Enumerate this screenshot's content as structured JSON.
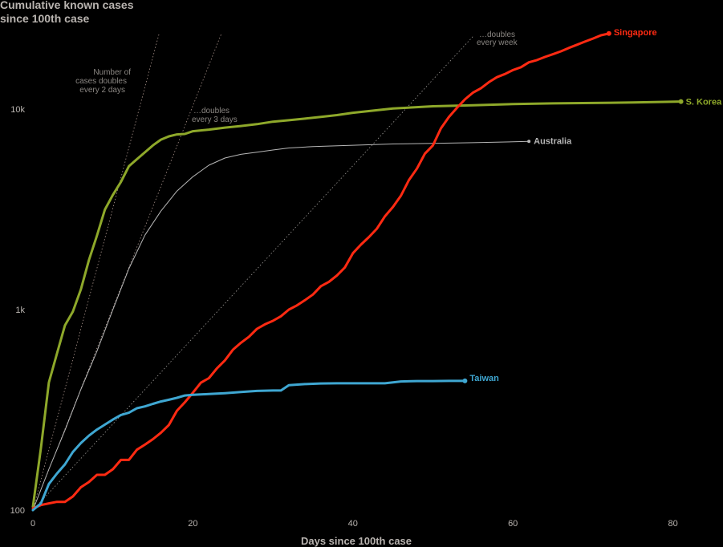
{
  "chart_data": {
    "type": "line",
    "title_lines": [
      "Cumulative known cases",
      "since 100th case"
    ],
    "xlabel": "Days since 100th case",
    "ylabel": "",
    "y_scale": "log",
    "xlim": [
      0,
      86
    ],
    "ylim": [
      100,
      30000
    ],
    "x_ticks": [
      0,
      20,
      40,
      60,
      80
    ],
    "x_tick_labels": [
      "0",
      "20",
      "40",
      "60",
      "80"
    ],
    "y_ticks": [
      100,
      1000,
      10000
    ],
    "y_tick_labels": [
      "100",
      "1k",
      "10k"
    ],
    "grid": false,
    "legend": "labels at line ends",
    "reference_lines": [
      {
        "id": "double-2",
        "doubling_days": 2,
        "x": [
          0,
          15.8
        ],
        "y": [
          100,
          24000
        ],
        "label_lines": [
          "Number of",
          "cases doubles",
          "every 2 days"
        ],
        "color": "#a8928a"
      },
      {
        "id": "double-3",
        "doubling_days": 3,
        "x": [
          0,
          23.6
        ],
        "y": [
          100,
          24000
        ],
        "label_lines": [
          "…doubles",
          "every 3 days"
        ],
        "color": "#a8928a"
      },
      {
        "id": "double-7",
        "doubling_days": 7,
        "x": [
          0,
          55
        ],
        "y": [
          100,
          23000
        ],
        "label_lines": [
          "…doubles",
          "every week"
        ],
        "color": "#9a9794"
      }
    ],
    "series": [
      {
        "name": "S. Korea",
        "color": "#8ea82a",
        "width": 3,
        "x": [
          0,
          1,
          2,
          3,
          4,
          5,
          6,
          7,
          8,
          9,
          10,
          11,
          12,
          13,
          14,
          15,
          16,
          17,
          18,
          19,
          20,
          22,
          24,
          26,
          28,
          30,
          32,
          34,
          36,
          38,
          40,
          45,
          50,
          55,
          60,
          65,
          70,
          75,
          81
        ],
        "y": [
          104,
          204,
          433,
          602,
          833,
          977,
          1261,
          1766,
          2337,
          3150,
          3736,
          4335,
          5186,
          5621,
          6088,
          6593,
          7041,
          7313,
          7478,
          7513,
          7755,
          7897,
          8086,
          8236,
          8413,
          8652,
          8799,
          8961,
          9137,
          9332,
          9583,
          10062,
          10331,
          10450,
          10591,
          10674,
          10728,
          10780,
          10900
        ]
      },
      {
        "name": "Australia",
        "color": "#b7b7b7",
        "width": 1,
        "x": [
          0,
          2,
          4,
          6,
          8,
          10,
          12,
          14,
          16,
          18,
          20,
          22,
          24,
          26,
          28,
          30,
          32,
          35,
          40,
          45,
          50,
          55,
          62
        ],
        "y": [
          100,
          160,
          250,
          400,
          620,
          1000,
          1600,
          2350,
          3100,
          3900,
          4600,
          5250,
          5700,
          5950,
          6100,
          6250,
          6400,
          6500,
          6600,
          6700,
          6750,
          6800,
          6900
        ]
      },
      {
        "name": "Singapore",
        "color": "#ff2a12",
        "width": 3,
        "x": [
          0,
          1,
          2,
          3,
          4,
          5,
          6,
          7,
          8,
          9,
          10,
          11,
          12,
          13,
          14,
          15,
          16,
          17,
          18,
          19,
          20,
          21,
          22,
          23,
          24,
          25,
          26,
          27,
          28,
          29,
          30,
          31,
          32,
          33,
          34,
          35,
          36,
          37,
          38,
          39,
          40,
          41,
          42,
          43,
          44,
          45,
          46,
          47,
          48,
          49,
          50,
          51,
          52,
          53,
          54,
          55,
          56,
          57,
          58,
          59,
          60,
          61,
          62,
          63,
          64,
          65,
          66,
          67,
          68,
          69,
          70,
          71,
          72
        ],
        "y": [
          102,
          106,
          108,
          110,
          110,
          117,
          130,
          138,
          150,
          150,
          160,
          178,
          178,
          200,
          212,
          226,
          243,
          266,
          313,
          345,
          385,
          432,
          455,
          509,
          558,
          631,
          683,
          732,
          802,
          844,
          879,
          926,
          1000,
          1049,
          1114,
          1189,
          1309,
          1375,
          1481,
          1623,
          1910,
          2108,
          2299,
          2532,
          2918,
          3252,
          3699,
          4427,
          5050,
          5992,
          6588,
          8014,
          9125,
          10141,
          11178,
          12075,
          12693,
          13624,
          14423,
          14951,
          15641,
          16169,
          17101,
          17548,
          18205,
          18778,
          19410,
          20198,
          20939,
          21707,
          22460,
          23336,
          23822
        ]
      },
      {
        "name": "Taiwan",
        "color": "#3fa7d2",
        "width": 3,
        "x": [
          0,
          1,
          2,
          3,
          4,
          5,
          6,
          7,
          8,
          9,
          10,
          11,
          12,
          13,
          14,
          15,
          16,
          17,
          18,
          19,
          20,
          22,
          24,
          26,
          28,
          30,
          31,
          32,
          34,
          36,
          38,
          40,
          42,
          44,
          46,
          48,
          50,
          52,
          54
        ],
        "y": [
          100,
          108,
          135,
          152,
          169,
          195,
          216,
          235,
          252,
          267,
          283,
          298,
          306,
          322,
          329,
          339,
          348,
          355,
          363,
          373,
          376,
          379,
          383,
          388,
          393,
          395,
          395,
          420,
          425,
          428,
          429,
          429,
          429,
          429,
          438,
          440,
          440,
          441,
          441
        ]
      }
    ]
  }
}
